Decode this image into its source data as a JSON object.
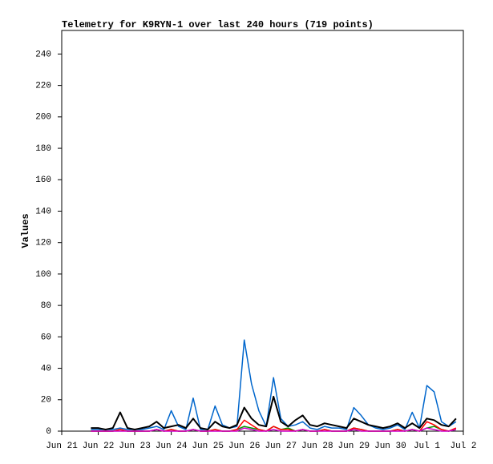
{
  "chart_data": {
    "type": "line",
    "title": "Telemetry for K9RYN-1 over last 240 hours (719 points)",
    "y_label": "Values",
    "x": [
      21.8,
      22.0,
      22.2,
      22.4,
      22.6,
      22.8,
      23.0,
      23.2,
      23.4,
      23.6,
      23.8,
      24.0,
      24.2,
      24.4,
      24.6,
      24.8,
      25.0,
      25.2,
      25.4,
      25.6,
      25.8,
      26.0,
      26.2,
      26.4,
      26.6,
      26.8,
      27.0,
      27.2,
      27.4,
      27.6,
      27.8,
      28.0,
      28.2,
      28.4,
      28.6,
      28.8,
      29.0,
      29.2,
      29.4,
      29.6,
      29.8,
      30.0,
      30.2,
      30.4,
      30.6,
      30.8,
      31.0,
      31.2,
      31.4,
      31.6,
      31.8
    ],
    "series": [
      {
        "color": "#0066cc",
        "values": [
          1,
          1,
          1,
          1,
          2,
          1,
          1,
          1,
          2,
          3,
          1,
          13,
          3,
          1,
          21,
          1,
          1,
          16,
          4,
          2,
          3,
          58,
          30,
          13,
          3,
          34,
          8,
          3,
          4,
          6,
          2,
          1,
          3,
          2,
          2,
          1,
          15,
          10,
          4,
          2,
          1,
          2,
          4,
          1,
          12,
          2,
          29,
          25,
          6,
          3,
          6
        ]
      },
      {
        "color": "#000000",
        "values": [
          2,
          2,
          1,
          2,
          12,
          2,
          1,
          2,
          3,
          6,
          2,
          3,
          4,
          2,
          8,
          2,
          1,
          6,
          3,
          2,
          4,
          15,
          8,
          4,
          3,
          22,
          6,
          3,
          7,
          10,
          4,
          3,
          5,
          4,
          3,
          2,
          8,
          6,
          4,
          3,
          2,
          3,
          5,
          2,
          5,
          2,
          8,
          7,
          4,
          3,
          8
        ]
      },
      {
        "color": "#009900",
        "values": [
          0,
          0,
          0,
          0,
          1,
          0,
          0,
          0,
          0,
          1,
          0,
          1,
          0,
          0,
          1,
          0,
          0,
          1,
          0,
          0,
          1,
          3,
          2,
          1,
          0,
          3,
          1,
          2,
          0,
          1,
          0,
          0,
          1,
          0,
          0,
          0,
          2,
          1,
          0,
          0,
          0,
          0,
          1,
          0,
          1,
          0,
          2,
          3,
          1,
          0,
          1
        ]
      },
      {
        "color": "#ff0000",
        "values": [
          0,
          0,
          0,
          0,
          1,
          0,
          0,
          0,
          0,
          1,
          0,
          1,
          0,
          0,
          1,
          0,
          0,
          1,
          0,
          0,
          1,
          7,
          4,
          1,
          0,
          3,
          1,
          1,
          0,
          1,
          0,
          0,
          1,
          0,
          0,
          0,
          2,
          1,
          0,
          0,
          0,
          0,
          1,
          0,
          1,
          0,
          6,
          4,
          1,
          0,
          2
        ]
      },
      {
        "color": "#cc00cc",
        "values": [
          0,
          0,
          0,
          0,
          0,
          0,
          0,
          0,
          0,
          1,
          0,
          0,
          0,
          0,
          1,
          0,
          0,
          0,
          0,
          0,
          0,
          2,
          1,
          0,
          0,
          1,
          0,
          0,
          0,
          1,
          0,
          0,
          0,
          0,
          0,
          0,
          1,
          0,
          0,
          0,
          0,
          0,
          0,
          0,
          1,
          0,
          2,
          1,
          0,
          0,
          1
        ]
      }
    ],
    "xlim": [
      21,
      32
    ],
    "xticks": [
      {
        "value": 21,
        "label": "Jun 21"
      },
      {
        "value": 22,
        "label": "Jun 22"
      },
      {
        "value": 23,
        "label": "Jun 23"
      },
      {
        "value": 24,
        "label": "Jun 24"
      },
      {
        "value": 25,
        "label": "Jun 25"
      },
      {
        "value": 26,
        "label": "Jun 26"
      },
      {
        "value": 27,
        "label": "Jun 27"
      },
      {
        "value": 28,
        "label": "Jun 28"
      },
      {
        "value": 29,
        "label": "Jun 29"
      },
      {
        "value": 30,
        "label": "Jun 30"
      },
      {
        "value": 31,
        "label": "Jul 1"
      },
      {
        "value": 32,
        "label": "Jul 2"
      }
    ],
    "ylim": [
      0,
      255
    ],
    "yticks": [
      0,
      20,
      40,
      60,
      80,
      100,
      120,
      140,
      160,
      180,
      200,
      220,
      240
    ],
    "grid": false
  }
}
